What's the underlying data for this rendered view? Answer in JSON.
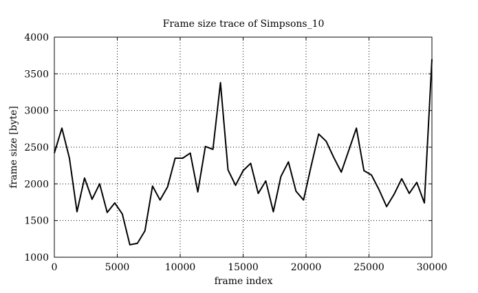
{
  "chart_data": {
    "type": "line",
    "title": "Frame size trace of Simpsons_10",
    "xlabel": "frame index",
    "ylabel": "frame size [byte]",
    "xlim": [
      0,
      30000
    ],
    "ylim": [
      1000,
      4000
    ],
    "xticks": [
      0,
      5000,
      10000,
      15000,
      20000,
      25000,
      30000
    ],
    "yticks": [
      1000,
      1500,
      2000,
      2500,
      3000,
      3500,
      4000
    ],
    "grid": true,
    "legend": "none",
    "line_color": "#000000",
    "series": [
      {
        "x": [
          0,
          600,
          1200,
          1800,
          2400,
          3000,
          3600,
          4200,
          4800,
          5400,
          6000,
          6600,
          7200,
          7800,
          8400,
          9000,
          9600,
          10200,
          10800,
          11400,
          12000,
          12600,
          13200,
          13800,
          14400,
          15000,
          15600,
          16200,
          16800,
          17400,
          18000,
          18600,
          19200,
          19800,
          20400,
          21000,
          21600,
          22200,
          22800,
          23400,
          24000,
          24600,
          25200,
          25800,
          26400,
          27000,
          27600,
          28200,
          28800,
          29400,
          30000
        ],
        "values": [
          2420,
          2760,
          2350,
          1620,
          2080,
          1790,
          2000,
          1610,
          1740,
          1590,
          1170,
          1190,
          1360,
          1970,
          1780,
          1960,
          2350,
          2350,
          2420,
          1890,
          2510,
          2470,
          3380,
          2190,
          1980,
          2180,
          2280,
          1870,
          2040,
          1620,
          2100,
          2300,
          1900,
          1780,
          2240,
          2680,
          2580,
          2360,
          2160,
          2460,
          2760,
          2180,
          2120,
          1920,
          1690,
          1860,
          2070,
          1870,
          2020,
          1740,
          3700
        ]
      }
    ]
  }
}
